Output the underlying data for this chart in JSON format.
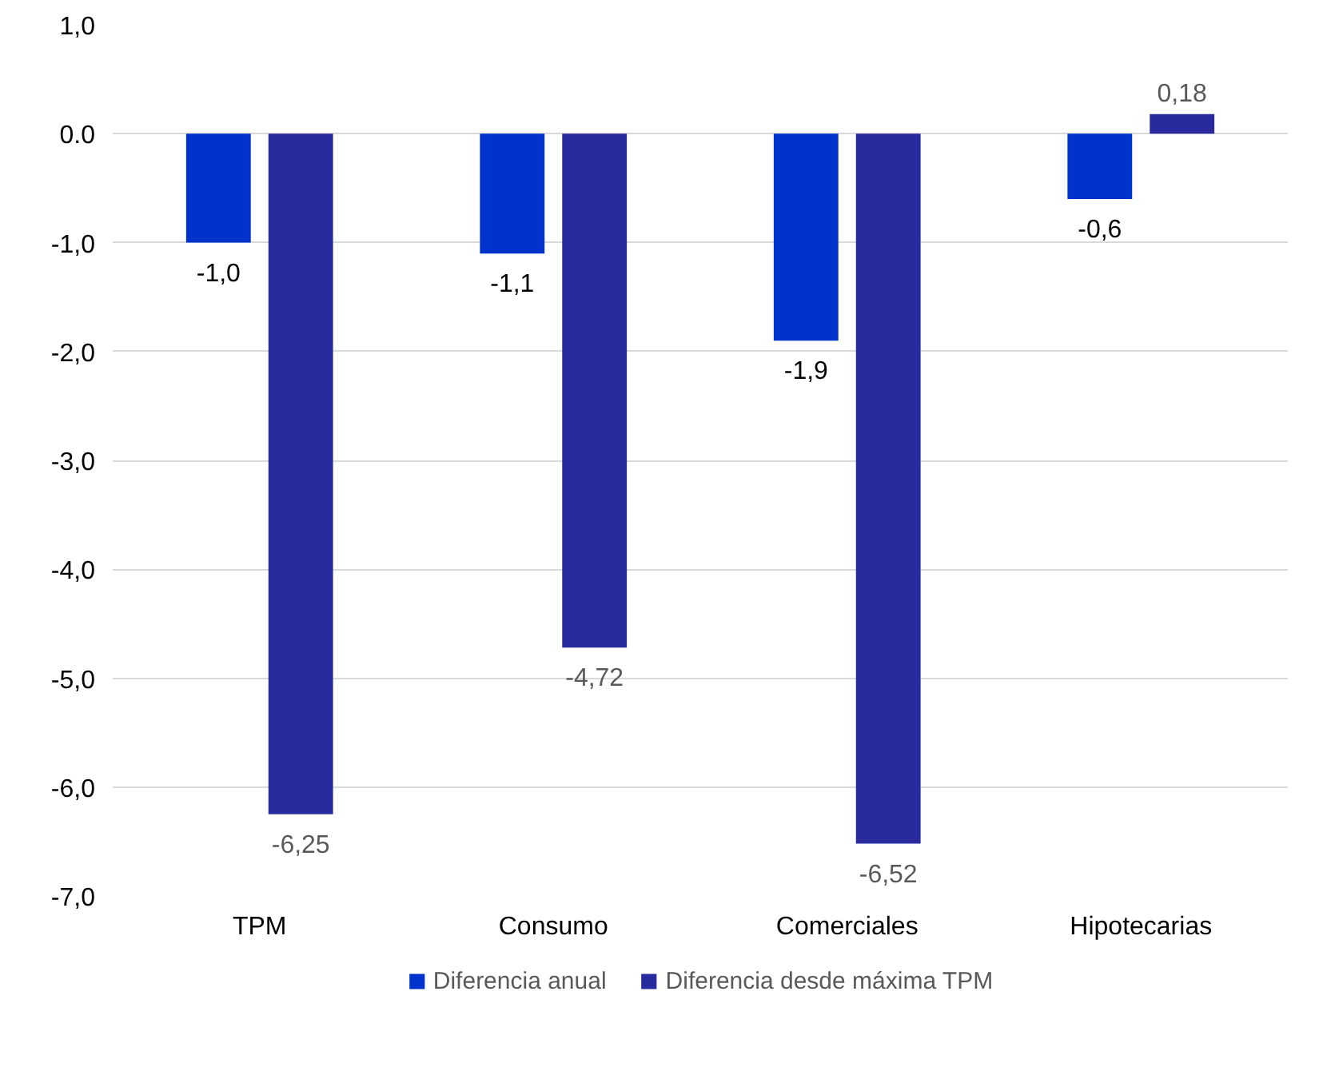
{
  "chart_data": {
    "type": "bar",
    "categories": [
      "TPM",
      "Consumo",
      "Comerciales",
      "Hipotecarias"
    ],
    "series": [
      {
        "name": "Diferencia anual",
        "color": "#0033cc",
        "values": [
          -1.0,
          -1.1,
          -1.9,
          -0.6
        ],
        "value_labels": [
          "-1,0",
          "-1,1",
          "-1,9",
          "-0,6"
        ]
      },
      {
        "name": "Diferencia desde máxima TPM",
        "color": "#2a2a9f",
        "values": [
          -6.25,
          -4.72,
          -6.52,
          0.18
        ],
        "value_labels": [
          "-6,25",
          "-4,72",
          "-6,52",
          "0,18"
        ]
      }
    ],
    "ylim": [
      -7.0,
      1.0
    ],
    "yticks": [
      {
        "value": 1.0,
        "label": "1,0"
      },
      {
        "value": 0.0,
        "label": "0.0"
      },
      {
        "value": -1.0,
        "label": "-1,0"
      },
      {
        "value": -2.0,
        "label": "-2,0"
      },
      {
        "value": -3.0,
        "label": "-3,0"
      },
      {
        "value": -4.0,
        "label": "-4,0"
      },
      {
        "value": -5.0,
        "label": "-5,0"
      },
      {
        "value": -6.0,
        "label": "-6,0"
      },
      {
        "value": -7.0,
        "label": "-7,0"
      }
    ],
    "grid": "y",
    "legend": "bottom"
  }
}
